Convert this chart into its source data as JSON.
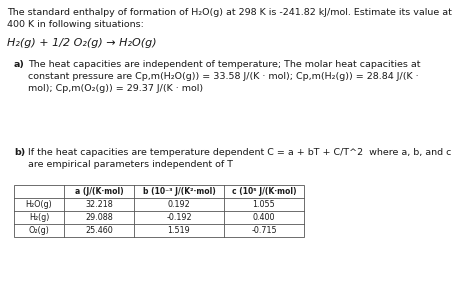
{
  "title_line1": "The standard enthalpy of formation of H₂O(g) at 298 K is -241.82 kJ/mol. Estimate its value at",
  "title_line2": "400 K in following situations:",
  "reaction": "H₂(g) + 1/2 O₂(g) → H₂O(g)",
  "part_a_label": "a)",
  "part_a_text1": "The heat capacities are independent of temperature; The molar heat capacities at",
  "part_a_text2": "constant pressure are Cp,m(H₂O(g)) = 33.58 J/(K · mol); Cp,m(H₂(g)) = 28.84 J/(K ·",
  "part_a_text3": "mol); Cp,m(O₂(g)) = 29.37 J/(K · mol)",
  "part_b_label": "b)",
  "part_b_text1": "If the heat capacities are temperature dependent C = a + bT + C/T^2  where a, b, and c",
  "part_b_text2": "are empirical parameters independent of T",
  "table_header_col0": "",
  "table_header_col1": "a (J/(K·mol)",
  "table_header_col2": "b (10⁻³ J/(K²·mol)",
  "table_header_col3": "c (10⁵ J/(K·mol)",
  "table_row1": [
    "H₂O(g)",
    "32.218",
    "0.192",
    "1.055"
  ],
  "table_row2": [
    "H₂(g)",
    "29.088",
    "-0.192",
    "0.400"
  ],
  "table_row3": [
    "O₂(g)",
    "25.460",
    "1.519",
    "-0.715"
  ],
  "bg_color": "#ffffff",
  "text_color": "#1a1a1a",
  "font_size_title": 6.8,
  "font_size_body": 6.8,
  "font_size_reaction": 8.0,
  "font_size_table_header": 5.5,
  "font_size_table_body": 5.8
}
